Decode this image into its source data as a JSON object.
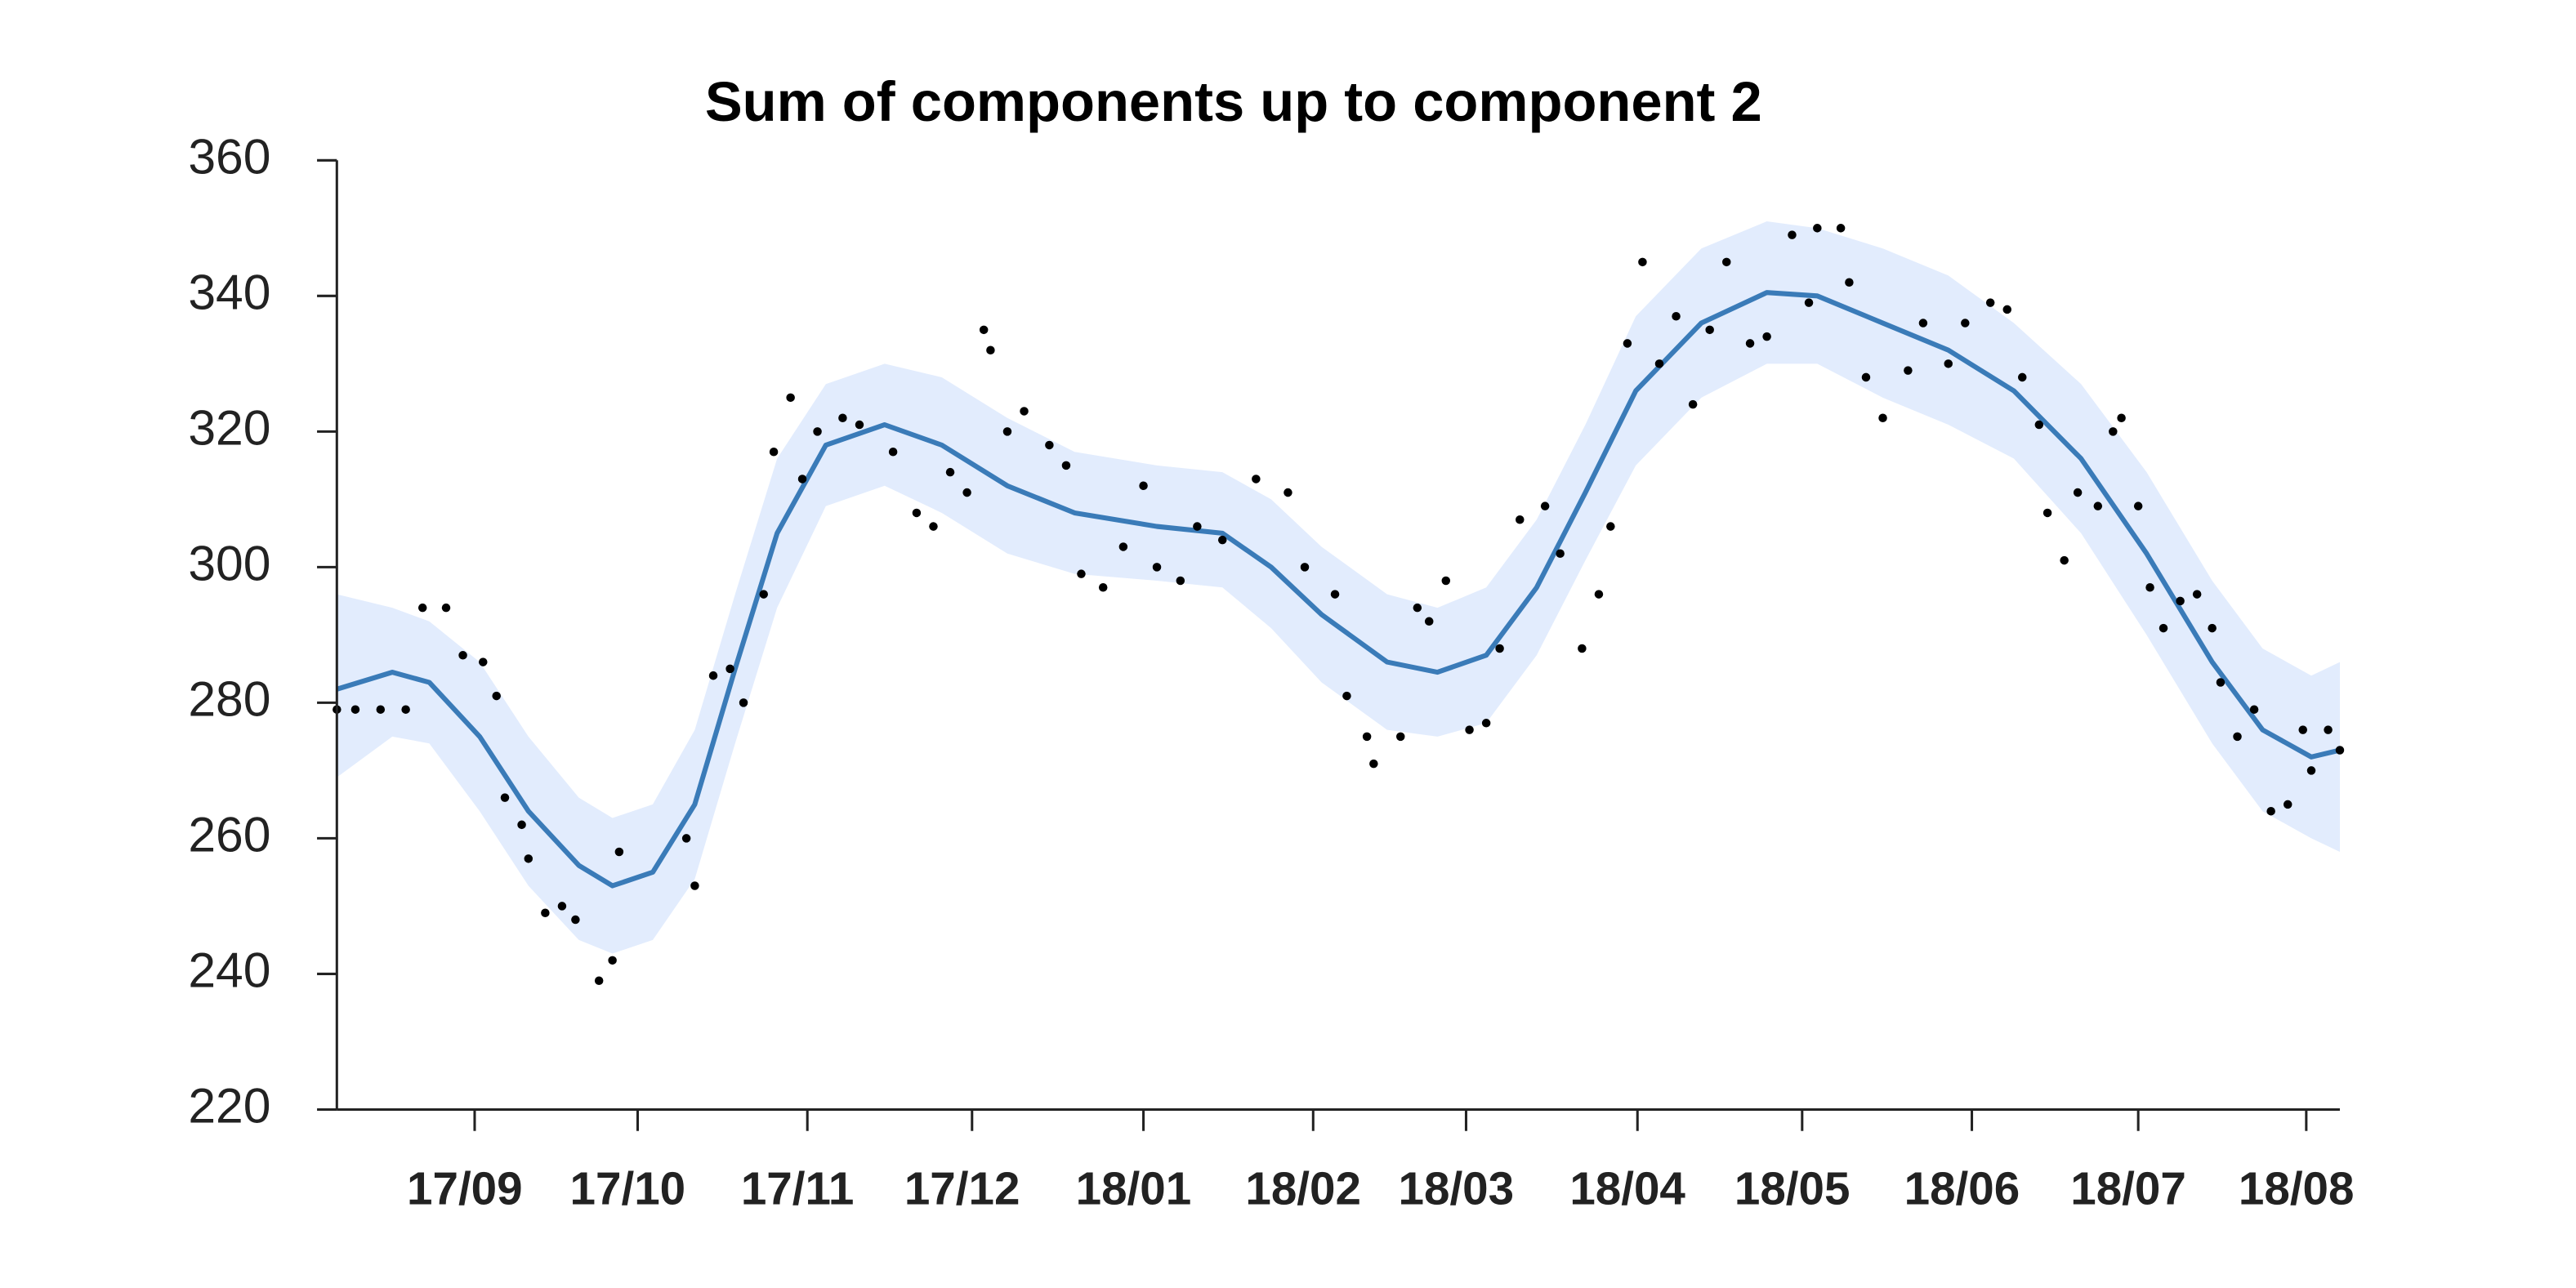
{
  "chart_data": {
    "type": "scatter-fit",
    "title": "Sum of components up to component 2",
    "xlim": [
      0.18,
      12.1
    ],
    "ylim": [
      220,
      360
    ],
    "yticks": [
      220,
      240,
      260,
      280,
      300,
      320,
      340,
      360
    ],
    "xticks": [
      {
        "value": 1,
        "label": "17/09"
      },
      {
        "value": 1.97,
        "label": "17/10"
      },
      {
        "value": 2.98,
        "label": "17/11"
      },
      {
        "value": 3.96,
        "label": "17/12"
      },
      {
        "value": 4.98,
        "label": "18/01"
      },
      {
        "value": 5.99,
        "label": "18/02"
      },
      {
        "value": 6.9,
        "label": "18/03"
      },
      {
        "value": 7.92,
        "label": "18/04"
      },
      {
        "value": 8.9,
        "label": "18/05"
      },
      {
        "value": 9.91,
        "label": "18/06"
      },
      {
        "value": 10.9,
        "label": "18/07"
      },
      {
        "value": 11.9,
        "label": "18/08"
      }
    ],
    "fit": {
      "color": "#3a7bb8",
      "band_color": "#e2ecfd",
      "x": [
        0.18,
        0.51,
        0.73,
        1.03,
        1.32,
        1.62,
        1.82,
        2.06,
        2.31,
        2.55,
        2.8,
        3.09,
        3.44,
        3.78,
        4.17,
        4.57,
        5.06,
        5.45,
        5.74,
        6.04,
        6.43,
        6.73,
        7.02,
        7.32,
        7.61,
        7.91,
        8.3,
        8.69,
        8.99,
        9.38,
        9.77,
        10.16,
        10.56,
        10.95,
        11.34,
        11.64,
        11.93,
        12.1
      ],
      "values": [
        282,
        284.5,
        283,
        275,
        264,
        256,
        253,
        255,
        265,
        285,
        305,
        318,
        321,
        318,
        312,
        308,
        306,
        305,
        300,
        293,
        286,
        284.5,
        287,
        297,
        311,
        326,
        336,
        340.5,
        340,
        336,
        332,
        326,
        316,
        302,
        286,
        276,
        272,
        273
      ],
      "upper": [
        296,
        294,
        292,
        286,
        275,
        266,
        263,
        265,
        276,
        296,
        316,
        327,
        330,
        328,
        322,
        317,
        315,
        314,
        310,
        303,
        296,
        294,
        297,
        307,
        321,
        337,
        347,
        351,
        350,
        347,
        343,
        336,
        327,
        314,
        298,
        288,
        284,
        286
      ],
      "lower": [
        269,
        275,
        274,
        264,
        253,
        245,
        243,
        245,
        254,
        274,
        294,
        309,
        312,
        308,
        302,
        299,
        298,
        297,
        291,
        283,
        276,
        275,
        277,
        287,
        301,
        315,
        325,
        330,
        330,
        325,
        321,
        316,
        305,
        290,
        274,
        264,
        260,
        258
      ]
    },
    "points": {
      "color": "#000000",
      "x": [
        0.18,
        0.29,
        0.44,
        0.59,
        0.69,
        0.83,
        0.93,
        1.05,
        1.13,
        1.18,
        1.28,
        1.32,
        1.42,
        1.52,
        1.6,
        1.74,
        1.82,
        1.86,
        2.26,
        2.31,
        2.42,
        2.52,
        2.6,
        2.72,
        2.78,
        2.88,
        2.95,
        3.04,
        3.19,
        3.29,
        3.49,
        3.63,
        3.73,
        3.83,
        3.93,
        4.03,
        4.07,
        4.17,
        4.27,
        4.42,
        4.52,
        4.61,
        4.74,
        4.86,
        4.98,
        5.06,
        5.2,
        5.3,
        5.45,
        5.65,
        5.84,
        5.94,
        6.12,
        6.19,
        6.31,
        6.35,
        6.51,
        6.61,
        6.68,
        6.78,
        6.92,
        7.02,
        7.1,
        7.22,
        7.37,
        7.46,
        7.59,
        7.69,
        7.76,
        7.86,
        7.95,
        8.05,
        8.15,
        8.25,
        8.35,
        8.45,
        8.59,
        8.69,
        8.84,
        8.94,
        8.99,
        9.13,
        9.18,
        9.28,
        9.38,
        9.53,
        9.62,
        9.77,
        9.87,
        10.02,
        10.12,
        10.21,
        10.31,
        10.36,
        10.46,
        10.54,
        10.66,
        10.75,
        10.8,
        10.9,
        10.97,
        11.05,
        11.15,
        11.25,
        11.34,
        11.39,
        11.49,
        11.59,
        11.69,
        11.79,
        11.88,
        11.93,
        12.03,
        12.1
      ],
      "values": [
        279,
        279,
        279,
        279,
        294,
        294,
        287,
        286,
        281,
        266,
        262,
        257,
        249,
        250,
        248,
        239,
        242,
        258,
        260,
        253,
        284,
        285,
        280,
        296,
        317,
        325,
        313,
        320,
        322,
        321,
        317,
        308,
        306,
        314,
        311,
        335,
        332,
        320,
        323,
        318,
        315,
        299,
        297,
        303,
        312,
        300,
        298,
        306,
        304,
        313,
        311,
        300,
        296,
        281,
        275,
        271,
        275,
        294,
        292,
        298,
        276,
        277,
        288,
        307,
        309,
        302,
        288,
        296,
        306,
        333,
        345,
        330,
        337,
        324,
        335,
        345,
        333,
        334,
        349,
        339,
        350,
        350,
        342,
        328,
        322,
        329,
        336,
        330,
        336,
        339,
        338,
        328,
        321,
        308,
        301,
        311,
        309,
        320,
        322,
        309,
        297,
        291,
        295,
        296,
        291,
        283,
        275,
        279,
        264,
        265,
        276,
        270,
        276,
        273
      ]
    }
  }
}
